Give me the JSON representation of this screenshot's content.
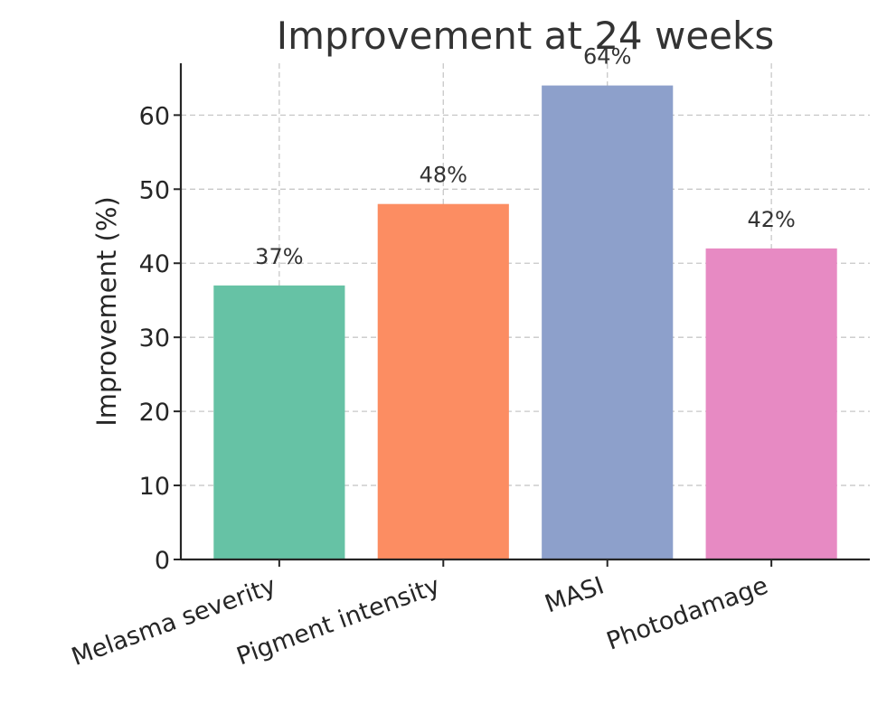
{
  "chart_data": {
    "type": "bar",
    "title": "Improvement at 24 weeks",
    "xlabel": "",
    "ylabel": "Improvement (%)",
    "categories": [
      "Melasma severity",
      "Pigment intensity",
      "MASI",
      "Photodamage"
    ],
    "values": [
      37,
      48,
      64,
      42
    ],
    "value_labels": [
      "37%",
      "48%",
      "64%",
      "42%"
    ],
    "colors": [
      "#66c2a5",
      "#fc8d62",
      "#8da0cb",
      "#e78ac3"
    ],
    "ylim": [
      0,
      67
    ],
    "yticks": [
      0,
      10,
      20,
      30,
      40,
      50,
      60
    ],
    "grid": true,
    "legend": "none"
  }
}
